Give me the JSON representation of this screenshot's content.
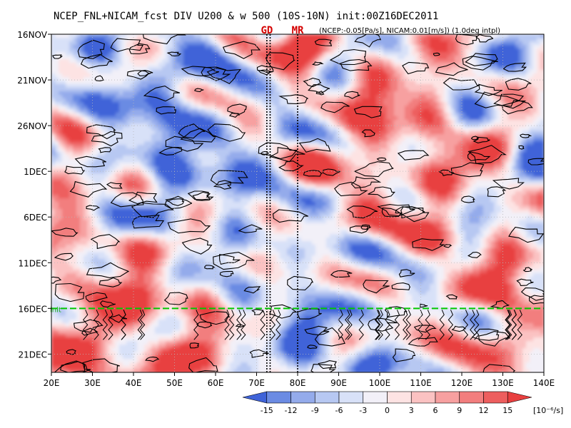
{
  "chart_data": {
    "type": "heatmap",
    "title": "NCEP_FNL+NICAM_fcst DIV U200 & w 500 (10S-10N) init:00Z16DEC2011",
    "subtitle": "(NCEP:-0.05[Pa/s], NICAM:0.01[m/s]) (1.0deg intpl)",
    "x_ticks": [
      "20E",
      "30E",
      "40E",
      "50E",
      "60E",
      "70E",
      "80E",
      "90E",
      "100E",
      "110E",
      "120E",
      "130E",
      "140E"
    ],
    "x_values": [
      20,
      30,
      40,
      50,
      60,
      70,
      80,
      90,
      100,
      110,
      120,
      130,
      140
    ],
    "xlim": [
      20,
      140
    ],
    "y_ticks": [
      "16NOV",
      "21NOV",
      "26NOV",
      "1DEC",
      "6DEC",
      "11DEC",
      "16DEC",
      "21DEC"
    ],
    "y_values": [
      0,
      5,
      10,
      15,
      20,
      25,
      30,
      35
    ],
    "ylim": [
      0,
      37
    ],
    "markers": [
      {
        "label": "GD",
        "lon": 72.5,
        "color": "#d40000"
      },
      {
        "label": "MR",
        "lon": 80,
        "color": "#d40000"
      }
    ],
    "marker_lines_lon": [
      72.5,
      73.3,
      80
    ],
    "init_line": {
      "day": 30,
      "color": "#00c800",
      "label": "init"
    },
    "colorbar": {
      "levels": [
        "-15",
        "-12",
        "-9",
        "-6",
        "-3",
        "0",
        "3",
        "6",
        "9",
        "12",
        "15"
      ],
      "unit": "[10⁻⁶/s]",
      "colors": [
        "#3f63d8",
        "#6b8be3",
        "#94abeb",
        "#b7c8f2",
        "#d8e1f8",
        "#f2f0f8",
        "#fde3e3",
        "#fbc2c2",
        "#f7a0a0",
        "#f27e7e",
        "#ed5e5e",
        "#e83f3f"
      ]
    }
  }
}
